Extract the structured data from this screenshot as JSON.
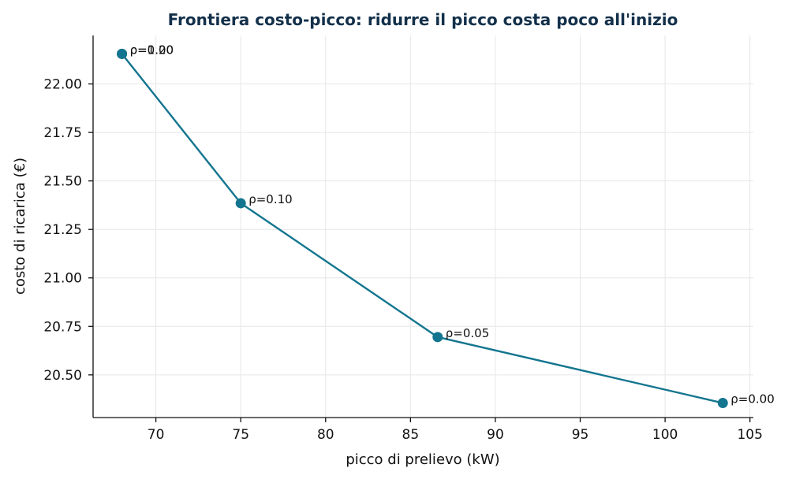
{
  "chart_data": {
    "type": "line",
    "title": "Frontiera costo-picco: ridurre il picco costa poco all'inizio",
    "xlabel": "picco di prelievo (kW)",
    "ylabel": "costo di ricarica (€)",
    "xlim": [
      66.3,
      105.2
    ],
    "ylim": [
      20.28,
      22.25
    ],
    "xticks": [
      70,
      75,
      80,
      85,
      90,
      95,
      100,
      105
    ],
    "yticks": [
      20.5,
      20.75,
      21.0,
      21.25,
      21.5,
      21.75,
      22.0
    ],
    "ytick_format": 2,
    "grid": true,
    "line_color": "#13758f",
    "points": [
      {
        "x": 68.0,
        "y": 22.155,
        "label": "ρ=0.20"
      },
      {
        "x": 68.0,
        "y": 22.155,
        "label": "ρ=1.00"
      },
      {
        "x": 75.0,
        "y": 21.385,
        "label": "ρ=0.10"
      },
      {
        "x": 86.6,
        "y": 20.695,
        "label": "ρ=0.05"
      },
      {
        "x": 103.4,
        "y": 20.355,
        "label": "ρ=0.00"
      }
    ]
  }
}
